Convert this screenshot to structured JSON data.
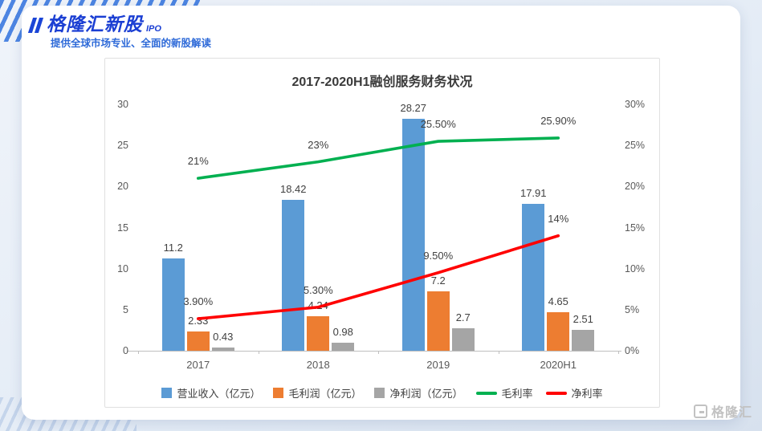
{
  "header": {
    "logo": "格隆汇新股",
    "logo_sub": "IPO",
    "tagline": "提供全球市场专业、全面的新股解读"
  },
  "watermark": {
    "text": "格隆汇"
  },
  "chart_data": {
    "type": "combo_bar_line",
    "title": "2017-2020H1融创服务财务状况",
    "categories": [
      "2017",
      "2018",
      "2019",
      "2020H1"
    ],
    "bar_series": [
      {
        "key": "revenue",
        "name": "营业收入（亿元）",
        "color": "#5b9bd5",
        "values": [
          11.2,
          18.42,
          28.27,
          17.91
        ],
        "labels": [
          "11.2",
          "18.42",
          "28.27",
          "17.91"
        ]
      },
      {
        "key": "gross-profit",
        "name": "毛利润（亿元）",
        "color": "#ed7d31",
        "values": [
          2.33,
          4.24,
          7.2,
          4.65
        ],
        "labels": [
          "2.33",
          "4.24",
          "7.2",
          "4.65"
        ]
      },
      {
        "key": "net-profit",
        "name": "净利润（亿元）",
        "color": "#a5a5a5",
        "values": [
          0.43,
          0.98,
          2.7,
          2.51
        ],
        "labels": [
          "0.43",
          "0.98",
          "2.7",
          "2.51"
        ]
      }
    ],
    "line_series": [
      {
        "key": "gross-margin",
        "name": "毛利率",
        "color": "#00b050",
        "values": [
          21,
          23,
          25.5,
          25.9
        ],
        "labels": [
          "21%",
          "23%",
          "25.50%",
          "25.90%"
        ]
      },
      {
        "key": "net-margin",
        "name": "净利率",
        "color": "#ff0000",
        "values": [
          3.9,
          5.3,
          9.5,
          14
        ],
        "labels": [
          "3.90%",
          "5.30%",
          "9.50%",
          "14%"
        ]
      }
    ],
    "left_axis": {
      "min": 0,
      "max": 30,
      "step": 5,
      "ticks": [
        "0",
        "5",
        "10",
        "15",
        "20",
        "25",
        "30"
      ]
    },
    "right_axis": {
      "min": 0,
      "max": 30,
      "step": 5,
      "ticks": [
        "0%",
        "5%",
        "10%",
        "15%",
        "20%",
        "25%",
        "30%"
      ]
    },
    "grid": false,
    "legend_position": "bottom"
  }
}
